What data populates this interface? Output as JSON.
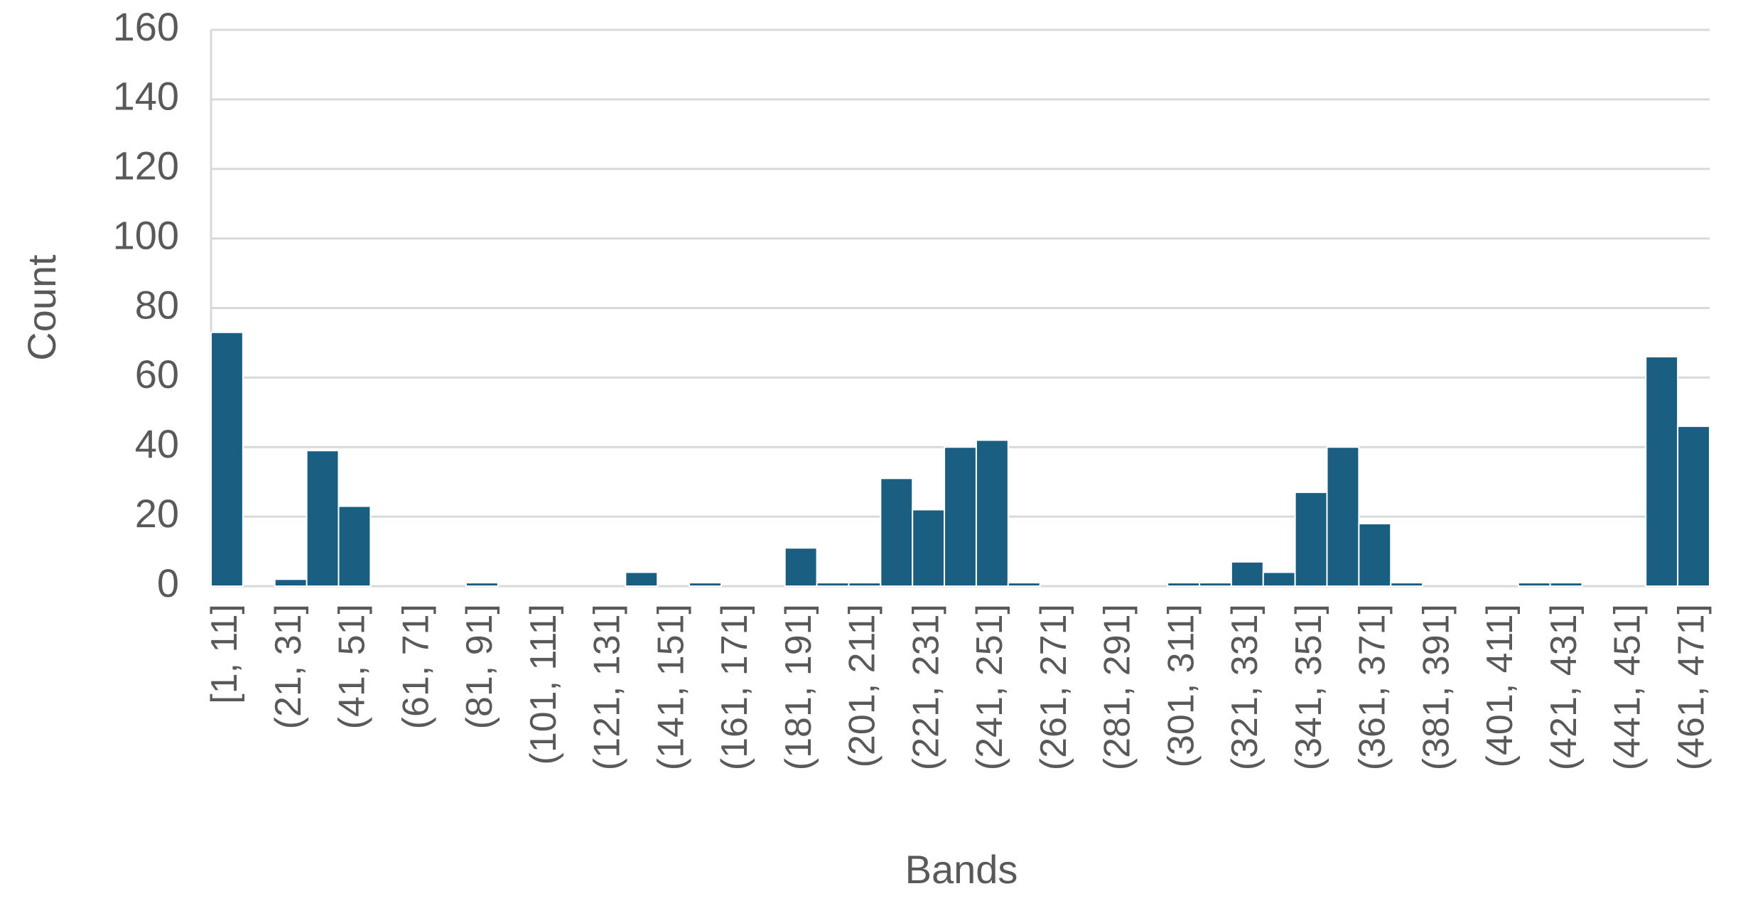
{
  "chart_data": {
    "type": "bar",
    "x_label": "Bands",
    "y_label": "Count",
    "categories": [
      "[1, 11]",
      null,
      "(21, 31]",
      null,
      "(41, 51]",
      null,
      "(61, 71]",
      null,
      "(81, 91]",
      null,
      "(101, 111]",
      null,
      "(121, 131]",
      null,
      "(141, 151]",
      null,
      "(161, 171]",
      null,
      "(181, 191]",
      null,
      "(201, 211]",
      null,
      "(221, 231]",
      null,
      "(241, 251]",
      null,
      "(261, 271]",
      null,
      "(281, 291]",
      null,
      "(301, 311]",
      null,
      "(321, 331]",
      null,
      "(341, 351]",
      null,
      "(361, 371]",
      null,
      "(381, 391]",
      null,
      "(401, 411]",
      null,
      "(421, 431]",
      null,
      "(441, 451]",
      null,
      "(461, 471]"
    ],
    "values": [
      73,
      0,
      2,
      39,
      23,
      0,
      0,
      0,
      1,
      0,
      0,
      0,
      0,
      4,
      0,
      1,
      0,
      0,
      11,
      1,
      1,
      31,
      22,
      40,
      42,
      1,
      0,
      0,
      0,
      0,
      1,
      1,
      7,
      4,
      27,
      40,
      18,
      1,
      0,
      0,
      0,
      1,
      1,
      0,
      0,
      66,
      46
    ],
    "color": "#1a5f82",
    "ylim": [
      0,
      160
    ],
    "yticks": [
      0,
      20,
      40,
      60,
      80,
      100,
      120,
      140,
      160
    ],
    "grid": true
  }
}
